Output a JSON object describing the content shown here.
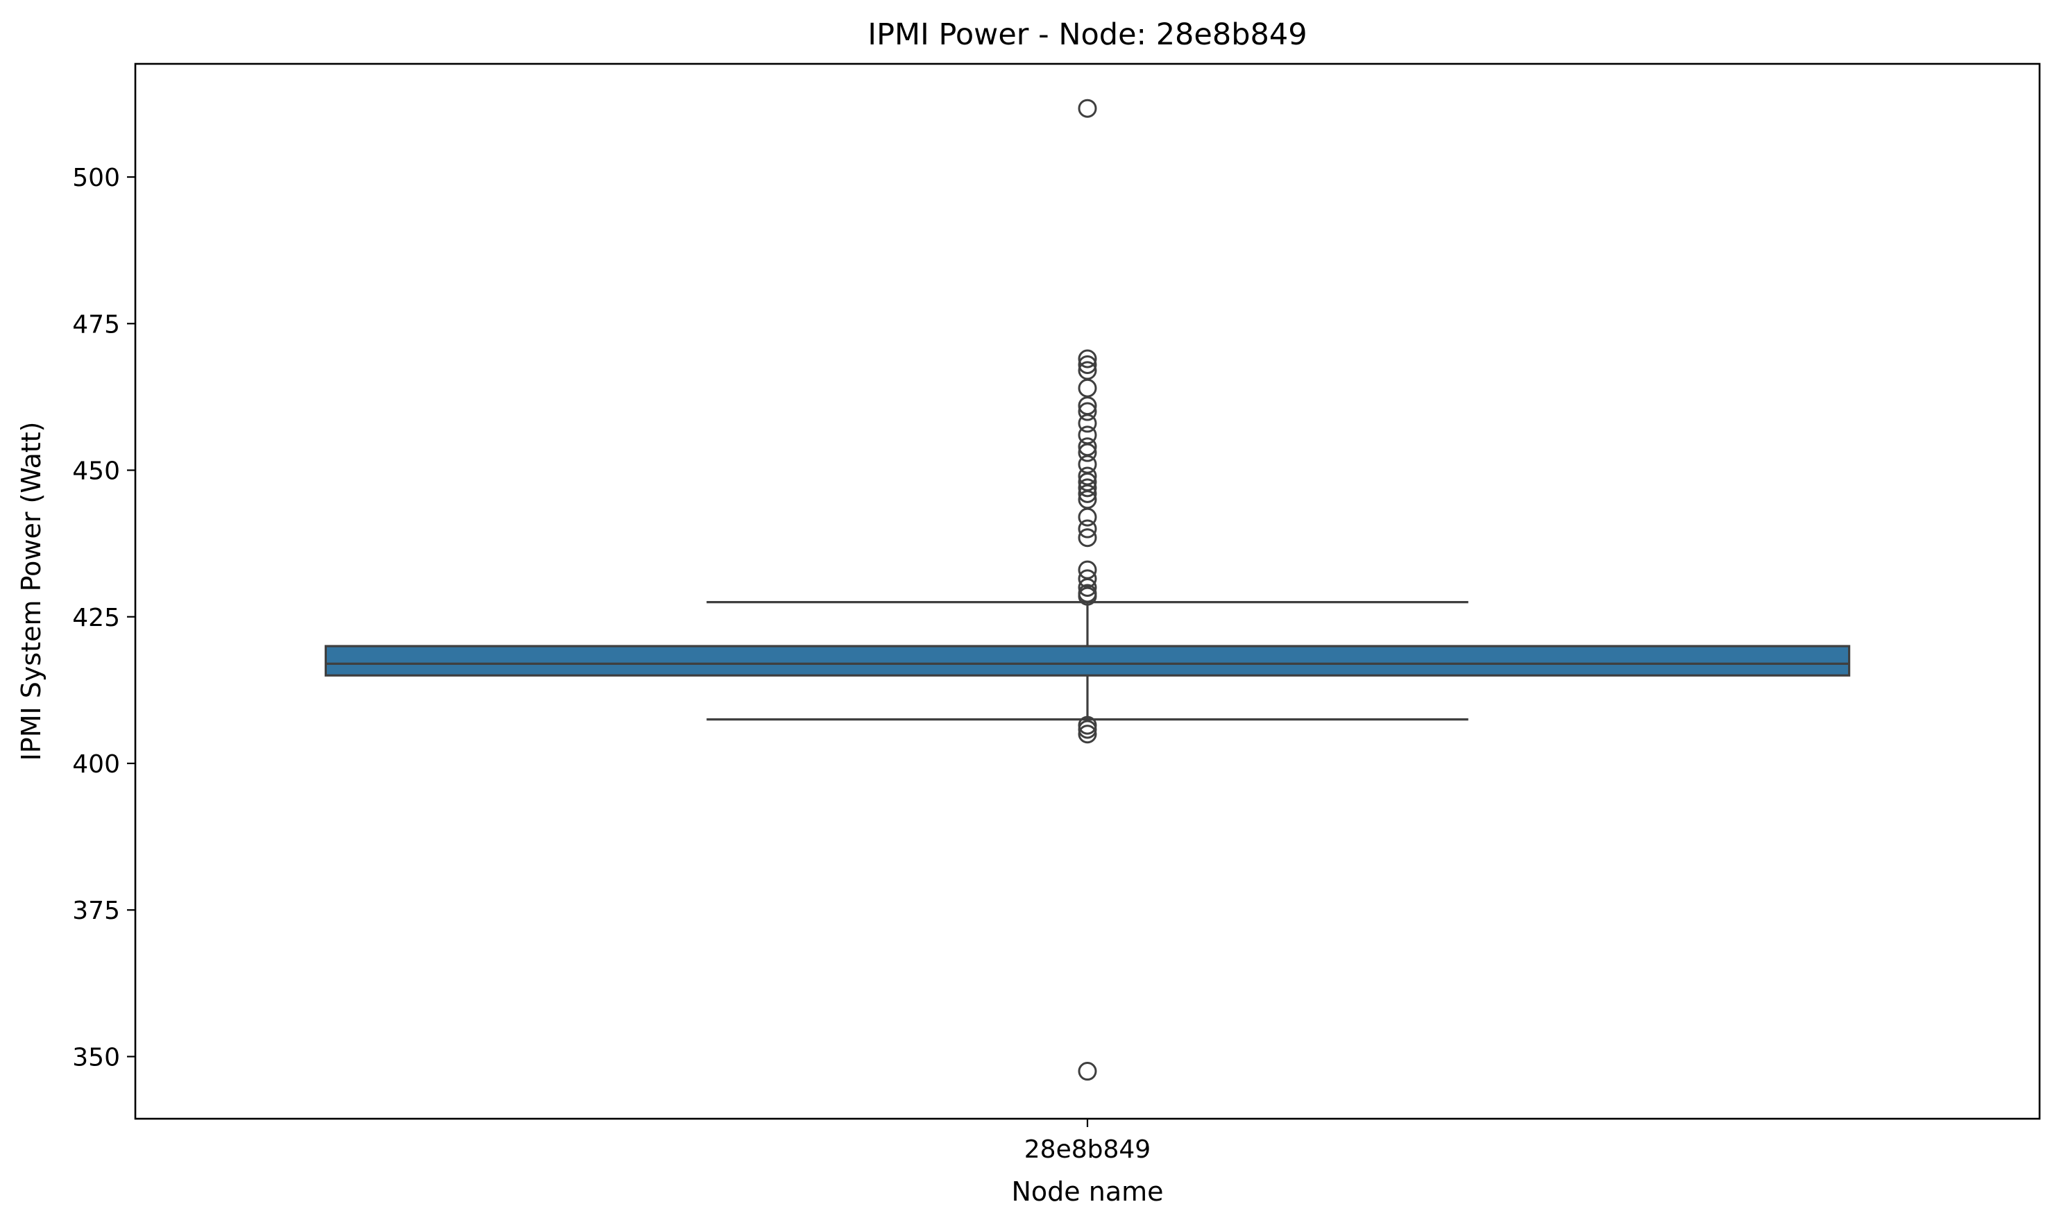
{
  "chart_data": {
    "type": "box",
    "title": "IPMI Power - Node: 28e8b849",
    "xlabel": "Node name",
    "ylabel": "IPMI System Power (Watt)",
    "categories": [
      "28e8b849"
    ],
    "ylim": [
      339.4,
      519.3
    ],
    "yticks": [
      350,
      375,
      400,
      425,
      450,
      475,
      500
    ],
    "grid": false,
    "box_color": "#3274a1",
    "edge_color": "#3f3f3f",
    "boxes": [
      {
        "category": "28e8b849",
        "q1": 415,
        "median": 417,
        "q3": 420,
        "whisker_low": 407.5,
        "whisker_high": 427.5,
        "outliers": [
          511.7,
          469,
          468,
          467,
          464,
          461,
          460,
          458,
          456,
          454,
          453,
          451,
          449,
          448,
          447,
          446,
          445,
          442,
          440,
          438.5,
          433,
          431.5,
          430,
          429,
          428.5,
          406.5,
          405.8,
          405,
          347.5
        ]
      }
    ]
  }
}
